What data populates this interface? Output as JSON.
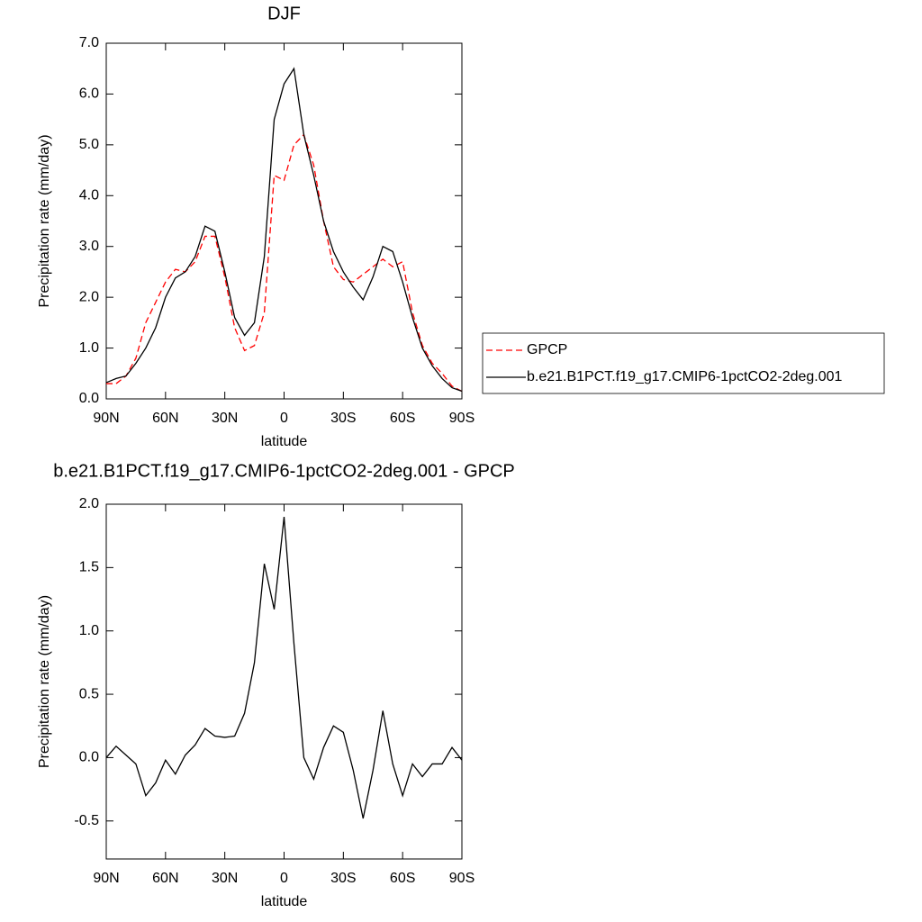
{
  "chart_data": [
    {
      "type": "line",
      "title": "DJF",
      "x_label": "latitude",
      "y_label": "Precipitation rate (mm/day)",
      "x": [
        90,
        85,
        80,
        75,
        70,
        65,
        60,
        55,
        50,
        45,
        40,
        35,
        30,
        25,
        20,
        15,
        10,
        5,
        0,
        -5,
        -10,
        -15,
        -20,
        -25,
        -30,
        -35,
        -40,
        -45,
        -50,
        -55,
        -60,
        -65,
        -70,
        -75,
        -80,
        -85,
        -90
      ],
      "series": [
        {
          "name": "GPCP",
          "color": "#ff0000",
          "line_style": "dashed",
          "values": [
            0.3,
            0.3,
            0.45,
            0.8,
            1.5,
            1.9,
            2.3,
            2.55,
            2.5,
            2.7,
            3.2,
            3.2,
            2.4,
            1.4,
            0.95,
            1.05,
            1.7,
            4.4,
            4.3,
            5.0,
            5.2,
            4.6,
            3.5,
            2.6,
            2.35,
            2.3,
            2.45,
            2.6,
            2.75,
            2.6,
            2.7,
            1.7,
            1.05,
            0.7,
            0.5,
            0.25,
            0.15
          ]
        },
        {
          "name": "b.e21.B1PCT.f19_g17.CMIP6-1pctCO2-2deg.001",
          "color": "#000000",
          "line_style": "solid",
          "values": [
            0.32,
            0.4,
            0.45,
            0.7,
            1.0,
            1.4,
            2.0,
            2.38,
            2.5,
            2.8,
            3.4,
            3.3,
            2.5,
            1.6,
            1.25,
            1.5,
            2.8,
            5.5,
            6.2,
            6.5,
            5.2,
            4.4,
            3.5,
            2.9,
            2.5,
            2.2,
            1.95,
            2.4,
            3.0,
            2.9,
            2.3,
            1.6,
            1.0,
            0.65,
            0.4,
            0.22,
            0.15
          ]
        }
      ],
      "xlim": [
        90,
        -90
      ],
      "xticks": [
        {
          "value": 90,
          "label": "90N"
        },
        {
          "value": 60,
          "label": "60N"
        },
        {
          "value": 30,
          "label": "30N"
        },
        0,
        {
          "value": -30,
          "label": "30S"
        },
        {
          "value": -60,
          "label": "60S"
        },
        {
          "value": -90,
          "label": "90S"
        }
      ],
      "ylim": [
        0,
        7
      ],
      "yticks": [
        {
          "value": 0,
          "label": "0.0"
        },
        {
          "value": 1,
          "label": "1.0"
        },
        {
          "value": 2,
          "label": "2.0"
        },
        {
          "value": 3,
          "label": "3.0"
        },
        {
          "value": 4,
          "label": "4.0"
        },
        {
          "value": 5,
          "label": "5.0"
        },
        {
          "value": 6,
          "label": "6.0"
        },
        {
          "value": 7,
          "label": "7.0"
        }
      ],
      "grid": false,
      "legend": "right"
    },
    {
      "type": "line",
      "title": "b.e21.B1PCT.f19_g17.CMIP6-1pctCO2-2deg.001 - GPCP",
      "x_label": "latitude",
      "y_label": "Precipitation rate (mm/day)",
      "x": [
        90,
        85,
        80,
        75,
        70,
        65,
        60,
        55,
        50,
        45,
        40,
        35,
        30,
        25,
        20,
        15,
        10,
        5,
        0,
        -5,
        -10,
        -15,
        -20,
        -25,
        -30,
        -35,
        -40,
        -45,
        -50,
        -55,
        -60,
        -65,
        -70,
        -75,
        -80,
        -85,
        -90
      ],
      "series": [
        {
          "color": "#000000",
          "line_style": "solid",
          "values": [
            0.0,
            0.09,
            0.02,
            -0.05,
            -0.3,
            -0.2,
            -0.02,
            -0.13,
            0.02,
            0.1,
            0.23,
            0.17,
            0.16,
            0.17,
            0.35,
            0.75,
            1.53,
            1.17,
            1.9,
            0.9,
            0.0,
            -0.17,
            0.08,
            0.25,
            0.2,
            -0.1,
            -0.48,
            -0.1,
            0.37,
            -0.05,
            -0.3,
            -0.05,
            -0.15,
            -0.05,
            -0.05,
            0.08,
            -0.02
          ]
        }
      ],
      "xlim": [
        90,
        -90
      ],
      "xticks": [
        {
          "value": 90,
          "label": "90N"
        },
        {
          "value": 60,
          "label": "60N"
        },
        {
          "value": 30,
          "label": "30N"
        },
        0,
        {
          "value": -30,
          "label": "30S"
        },
        {
          "value": -60,
          "label": "60S"
        },
        {
          "value": -90,
          "label": "90S"
        }
      ],
      "ylim": [
        -0.8,
        2.0
      ],
      "yticks": [
        -0.5,
        {
          "value": 0,
          "label": "0.0"
        },
        0.5,
        {
          "value": 1,
          "label": "1.0"
        },
        1.5,
        {
          "value": 2,
          "label": "2.0"
        }
      ],
      "grid": false
    }
  ]
}
